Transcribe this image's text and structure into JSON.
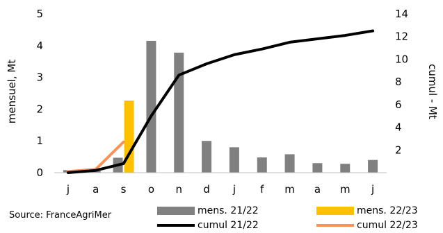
{
  "source": "Source: FranceAgriMer",
  "colors": {
    "mens_2122": "#808080",
    "mens_2223": "#ffc000",
    "cumul_2122": "#000000",
    "cumul_2223": "#f4945a"
  },
  "chart_data": {
    "type": "bar",
    "categories": [
      "j",
      "a",
      "s",
      "o",
      "n",
      "d",
      "j",
      "f",
      "m",
      "a",
      "m",
      "j"
    ],
    "ylabel_left": "mensuel, Mt",
    "ylabel_right": "cumul - Mt",
    "ylim_left": [
      0,
      5
    ],
    "ylim_right": [
      0,
      14
    ],
    "yticks_left": [
      "0",
      "1",
      "2",
      "3",
      "4",
      "5"
    ],
    "yticks_right": [
      "2",
      "4",
      "6",
      "8",
      "10",
      "12",
      "14"
    ],
    "grid": false,
    "legend_position": "bottom",
    "series": [
      {
        "name": "mens. 21/22",
        "kind": "bar",
        "axis": "left",
        "values": [
          0.08,
          0.05,
          0.47,
          4.15,
          3.78,
          1.0,
          0.8,
          0.48,
          0.58,
          0.3,
          0.28,
          0.4
        ]
      },
      {
        "name": "mens. 22/23",
        "kind": "bar",
        "axis": "left",
        "values": [
          null,
          null,
          2.27,
          null,
          null,
          null,
          null,
          null,
          null,
          null,
          null,
          null
        ]
      },
      {
        "name": "cumul 21/22",
        "kind": "line",
        "axis": "right",
        "values": [
          0.0,
          0.2,
          0.8,
          5.0,
          8.6,
          9.6,
          10.4,
          10.9,
          11.5,
          11.8,
          12.1,
          12.5
        ]
      },
      {
        "name": "cumul 22/23",
        "kind": "line",
        "axis": "right",
        "values": [
          0.1,
          0.3,
          2.7,
          null,
          null,
          null,
          null,
          null,
          null,
          null,
          null,
          null
        ]
      }
    ]
  }
}
